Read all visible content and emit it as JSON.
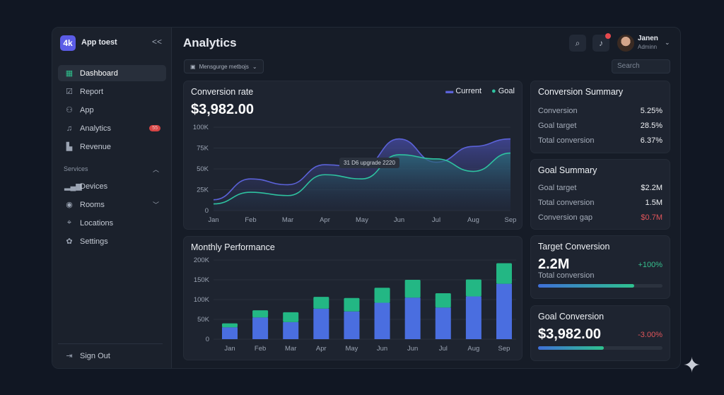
{
  "app": {
    "logo": "4k",
    "name": "App toest",
    "collapse": "<<"
  },
  "sidebar": {
    "items": [
      {
        "label": "Dashboard",
        "icon": "dashboard-icon",
        "active": true
      },
      {
        "label": "Report",
        "icon": "report-icon"
      },
      {
        "label": "App",
        "icon": "users-icon"
      },
      {
        "label": "Analytics",
        "icon": "bell-icon",
        "badge": "55"
      },
      {
        "label": "Revenue",
        "icon": "revenue-chart-icon"
      }
    ],
    "section": "Services",
    "services": [
      {
        "label": "Devices",
        "icon": "signal-bars-icon"
      },
      {
        "label": "Rooms",
        "icon": "target-icon"
      },
      {
        "label": "Locations",
        "icon": "location-pin-icon"
      },
      {
        "label": "Settings",
        "icon": "gear-icon"
      }
    ],
    "signout": "Sign Out"
  },
  "header": {
    "title": "Analytics",
    "filter": "Mensgurge metbojs",
    "search_placeholder": "Search",
    "user": {
      "name": "Janen",
      "role": "Adminn"
    }
  },
  "colors": {
    "current": "#5b62d8",
    "goal": "#2ec2a0",
    "bar_blue": "#4a6ee0",
    "bar_green": "#23b784",
    "negative": "#e0555a",
    "positive": "#36c08e"
  },
  "conversion_rate": {
    "title": "Conversion rate",
    "value": "$3,982.00",
    "tooltip": "31 D6 upgrade 2220"
  },
  "monthly": {
    "title": "Monthly Performance"
  },
  "chart_data": [
    {
      "type": "area",
      "categories": [
        "Jan",
        "Feb",
        "Mar",
        "Apr",
        "May",
        "Jun",
        "Jul",
        "Aug",
        "Sep"
      ],
      "series": [
        {
          "name": "Current",
          "values": [
            13000,
            38000,
            31000,
            55000,
            52000,
            86000,
            58000,
            77000,
            86000
          ]
        },
        {
          "name": "Goal",
          "values": [
            8000,
            22000,
            18000,
            43000,
            38000,
            67000,
            62000,
            47000,
            69000
          ]
        }
      ],
      "yticks": [
        "0",
        "25K",
        "50K",
        "75K",
        "100K"
      ],
      "ylim": [
        0,
        100000
      ],
      "grid": true,
      "legend": "top-right"
    },
    {
      "type": "bar",
      "stacked": true,
      "categories": [
        "Jan",
        "Feb",
        "Mar",
        "Apr",
        "May",
        "Jun",
        "Jun",
        "Jul",
        "Aug",
        "Sep"
      ],
      "series": [
        {
          "values": [
            30000,
            55000,
            43000,
            77000,
            70000,
            92000,
            105000,
            80000,
            108000,
            140000
          ]
        },
        {
          "values": [
            10000,
            18000,
            25000,
            30000,
            34000,
            38000,
            45000,
            36000,
            43000,
            52000
          ]
        }
      ],
      "yticks": [
        "0",
        "50K",
        "100K",
        "150K",
        "200K"
      ],
      "ylim": [
        0,
        200000
      ],
      "grid": true
    }
  ],
  "conversion_summary": {
    "title": "Conversion Summary",
    "rows": [
      {
        "label": "Conversion",
        "value": "5.25%"
      },
      {
        "label": "Goal target",
        "value": "28.5%"
      },
      {
        "label": "Total conversion",
        "value": "6.37%"
      }
    ]
  },
  "goal_summary": {
    "title": "Goal Summary",
    "rows": [
      {
        "label": "Goal target",
        "value": "$2.2M"
      },
      {
        "label": "Total conversion",
        "value": "1.5M"
      },
      {
        "label": "Conversion gap",
        "value": "$0.7M"
      }
    ]
  },
  "target_conversion": {
    "title": "Target Conversion",
    "value": "2.2M",
    "sub": "Total conversion",
    "change": "+100%",
    "progress": 77
  },
  "goal_conversion": {
    "title": "Goal Conversion",
    "value": "$3,982.00",
    "change": "-3.00%",
    "progress": 53
  }
}
